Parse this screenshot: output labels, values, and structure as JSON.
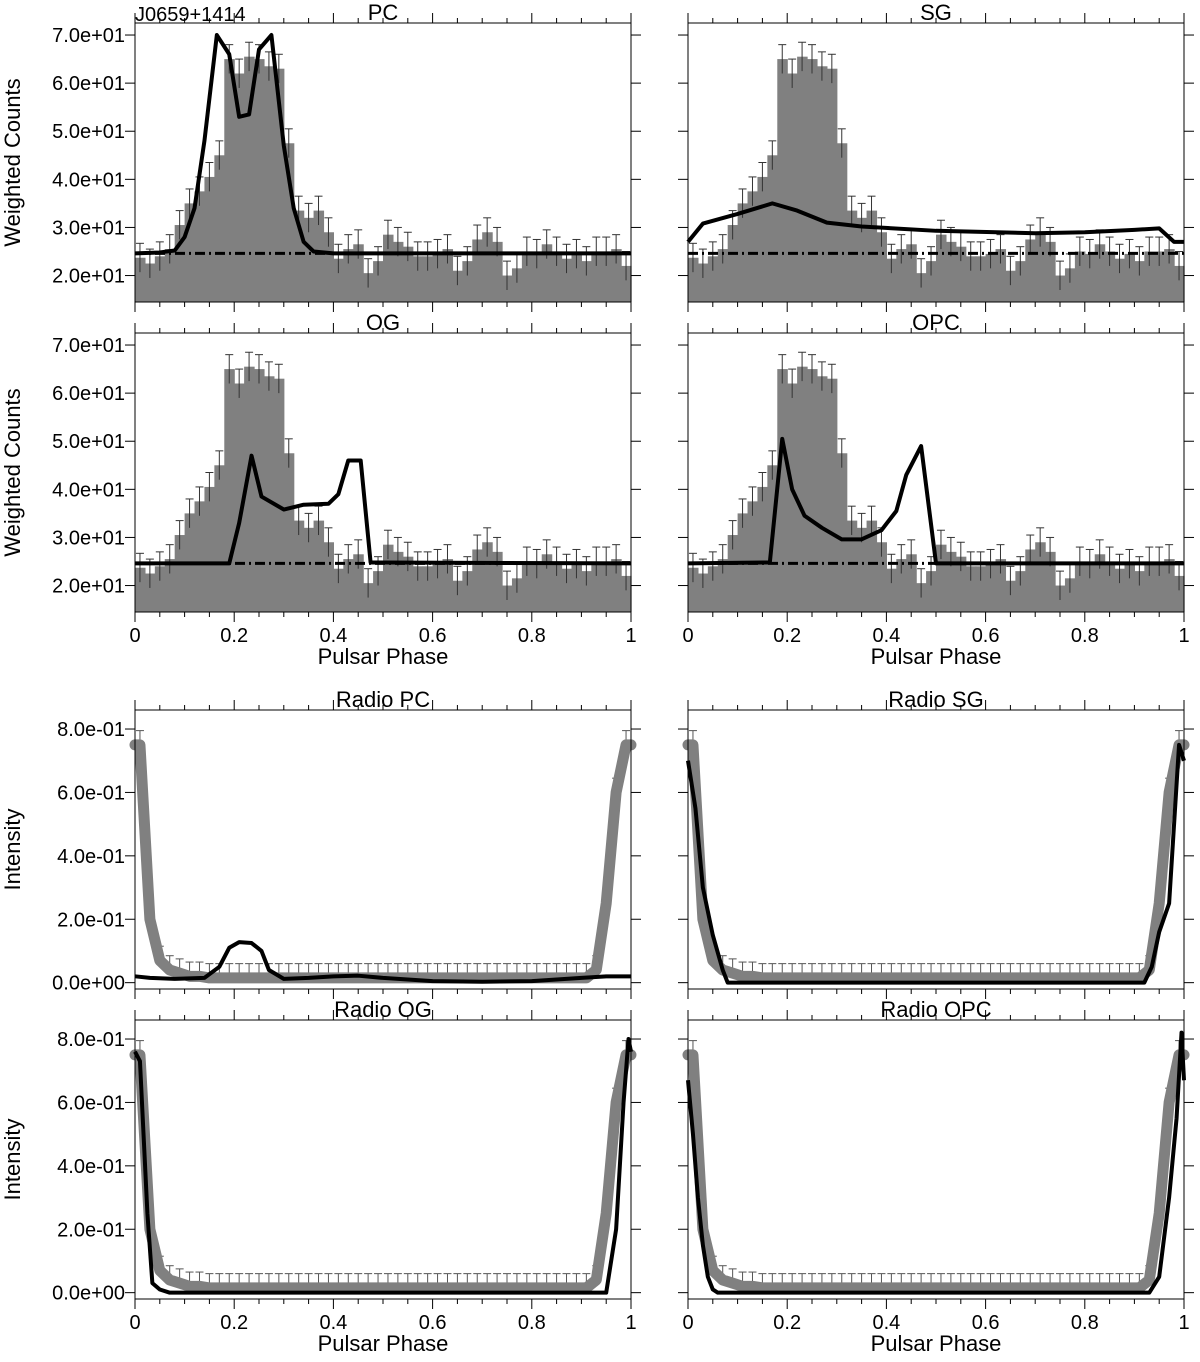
{
  "chart_data": {
    "type": "grid",
    "pulsar_name": "J0659+1414",
    "colors": {
      "observed": "#808080",
      "model": "#000000",
      "background": "#000000",
      "frame": "#000000"
    },
    "panels": [
      {
        "key": "pc",
        "title": "PC",
        "kind": "gamma",
        "ylabel": "Weighted Counts",
        "xlabel": "",
        "xlim": [
          0,
          1
        ],
        "ylim": [
          14.5,
          72.5
        ],
        "yticks": [
          "2.0e+01",
          "3.0e+01",
          "4.0e+01",
          "5.0e+01",
          "6.0e+01",
          "7.0e+01"
        ],
        "xticks": [],
        "background_level": 24.6,
        "model": [
          [
            0,
            24.6
          ],
          [
            0.05,
            24.8
          ],
          [
            0.08,
            25.2
          ],
          [
            0.1,
            28
          ],
          [
            0.12,
            34
          ],
          [
            0.14,
            48
          ],
          [
            0.165,
            70
          ],
          [
            0.19,
            66
          ],
          [
            0.21,
            53
          ],
          [
            0.23,
            53.5
          ],
          [
            0.25,
            67
          ],
          [
            0.275,
            70
          ],
          [
            0.3,
            47
          ],
          [
            0.32,
            34
          ],
          [
            0.34,
            27
          ],
          [
            0.36,
            25
          ],
          [
            0.4,
            24.6
          ],
          [
            1,
            24.6
          ]
        ]
      },
      {
        "key": "sg",
        "title": "SG",
        "kind": "gamma",
        "ylabel": "",
        "xlabel": "",
        "xlim": [
          0,
          1
        ],
        "ylim": [
          14.5,
          72.5
        ],
        "yticks": [],
        "xticks": [],
        "background_level": 24.6,
        "model": [
          [
            0,
            27
          ],
          [
            0.03,
            30.8
          ],
          [
            0.1,
            32.8
          ],
          [
            0.17,
            35
          ],
          [
            0.22,
            33.5
          ],
          [
            0.28,
            31
          ],
          [
            0.35,
            30.2
          ],
          [
            0.5,
            29.3
          ],
          [
            0.7,
            28.8
          ],
          [
            0.8,
            29
          ],
          [
            0.9,
            29.5
          ],
          [
            0.95,
            29.8
          ],
          [
            0.98,
            27
          ],
          [
            1,
            27
          ]
        ]
      },
      {
        "key": "og",
        "title": "OG",
        "kind": "gamma",
        "ylabel": "Weighted Counts",
        "xlabel": "Pulsar Phase",
        "xlim": [
          0,
          1
        ],
        "ylim": [
          14.5,
          72.5
        ],
        "yticks": [
          "2.0e+01",
          "3.0e+01",
          "4.0e+01",
          "5.0e+01",
          "6.0e+01",
          "7.0e+01"
        ],
        "xticks": [
          "0",
          "0.2",
          "0.4",
          "0.6",
          "0.8",
          "1"
        ],
        "background_level": 24.6,
        "model": [
          [
            0,
            24.6
          ],
          [
            0.19,
            24.6
          ],
          [
            0.21,
            33
          ],
          [
            0.235,
            47
          ],
          [
            0.255,
            38.5
          ],
          [
            0.3,
            35.8
          ],
          [
            0.34,
            36.8
          ],
          [
            0.39,
            37
          ],
          [
            0.41,
            39
          ],
          [
            0.43,
            46
          ],
          [
            0.455,
            46
          ],
          [
            0.475,
            24.8
          ],
          [
            1,
            24.6
          ]
        ]
      },
      {
        "key": "opc",
        "title": "OPC",
        "kind": "gamma",
        "ylabel": "",
        "xlabel": "Pulsar Phase",
        "xlim": [
          0,
          1
        ],
        "ylim": [
          14.5,
          72.5
        ],
        "yticks": [],
        "xticks": [
          "0",
          "0.2",
          "0.4",
          "0.6",
          "0.8",
          "1"
        ],
        "background_level": 24.6,
        "model": [
          [
            0,
            24.6
          ],
          [
            0.165,
            24.8
          ],
          [
            0.19,
            50.5
          ],
          [
            0.21,
            40
          ],
          [
            0.235,
            34.5
          ],
          [
            0.27,
            32
          ],
          [
            0.31,
            29.6
          ],
          [
            0.35,
            29.6
          ],
          [
            0.39,
            31.5
          ],
          [
            0.42,
            35.5
          ],
          [
            0.44,
            43
          ],
          [
            0.47,
            49
          ],
          [
            0.5,
            24.6
          ],
          [
            1,
            24.6
          ]
        ]
      },
      {
        "key": "radio-pc",
        "title": "Radio PC",
        "kind": "radio",
        "ylabel": "Intensity",
        "xlabel": "",
        "xlim": [
          0,
          1
        ],
        "ylim": [
          -0.02,
          0.86
        ],
        "yticks": [
          "0.0e+00",
          "2.0e-01",
          "4.0e-01",
          "6.0e-01",
          "8.0e-01"
        ],
        "xticks": [],
        "model": [
          [
            0,
            0.02
          ],
          [
            0.03,
            0.015
          ],
          [
            0.08,
            0.012
          ],
          [
            0.14,
            0.015
          ],
          [
            0.17,
            0.05
          ],
          [
            0.19,
            0.11
          ],
          [
            0.21,
            0.128
          ],
          [
            0.235,
            0.125
          ],
          [
            0.255,
            0.1
          ],
          [
            0.27,
            0.04
          ],
          [
            0.3,
            0.012
          ],
          [
            0.35,
            0.015
          ],
          [
            0.4,
            0.02
          ],
          [
            0.45,
            0.022
          ],
          [
            0.5,
            0.015
          ],
          [
            0.6,
            0.005
          ],
          [
            0.7,
            0.003
          ],
          [
            0.8,
            0.005
          ],
          [
            0.9,
            0.015
          ],
          [
            0.95,
            0.02
          ],
          [
            1,
            0.02
          ]
        ]
      },
      {
        "key": "radio-sg",
        "title": "Radio SG",
        "kind": "radio",
        "ylabel": "",
        "xlabel": "",
        "xlim": [
          0,
          1
        ],
        "ylim": [
          -0.02,
          0.86
        ],
        "yticks": [],
        "xticks": [],
        "model": [
          [
            0,
            0.7
          ],
          [
            0.015,
            0.55
          ],
          [
            0.03,
            0.3
          ],
          [
            0.05,
            0.15
          ],
          [
            0.07,
            0.04
          ],
          [
            0.08,
            0
          ],
          [
            0.92,
            0
          ],
          [
            0.935,
            0.05
          ],
          [
            0.95,
            0.16
          ],
          [
            0.97,
            0.25
          ],
          [
            0.99,
            0.75
          ],
          [
            1,
            0.7
          ]
        ]
      },
      {
        "key": "radio-og",
        "title": "Radio OG",
        "kind": "radio",
        "ylabel": "Intensity",
        "xlabel": "Pulsar Phase",
        "xlim": [
          0,
          1
        ],
        "ylim": [
          -0.02,
          0.86
        ],
        "yticks": [
          "0.0e+00",
          "2.0e-01",
          "4.0e-01",
          "6.0e-01",
          "8.0e-01"
        ],
        "xticks": [
          "0",
          "0.2",
          "0.4",
          "0.6",
          "0.8",
          "1"
        ],
        "model": [
          [
            0,
            0.76
          ],
          [
            0.01,
            0.73
          ],
          [
            0.025,
            0.25
          ],
          [
            0.035,
            0.03
          ],
          [
            0.05,
            0.01
          ],
          [
            0.07,
            0
          ],
          [
            0.95,
            0
          ],
          [
            0.97,
            0.2
          ],
          [
            0.985,
            0.6
          ],
          [
            0.995,
            0.8
          ],
          [
            1,
            0.76
          ]
        ]
      },
      {
        "key": "radio-opc",
        "title": "Radio OPC",
        "kind": "radio",
        "ylabel": "",
        "xlabel": "Pulsar Phase",
        "xlim": [
          0,
          1
        ],
        "ylim": [
          -0.02,
          0.86
        ],
        "yticks": [],
        "xticks": [
          "0",
          "0.2",
          "0.4",
          "0.6",
          "0.8",
          "1"
        ],
        "model": [
          [
            0,
            0.67
          ],
          [
            0.01,
            0.5
          ],
          [
            0.02,
            0.3
          ],
          [
            0.03,
            0.15
          ],
          [
            0.04,
            0.05
          ],
          [
            0.05,
            0.01
          ],
          [
            0.06,
            0
          ],
          [
            0.93,
            0
          ],
          [
            0.95,
            0.05
          ],
          [
            0.97,
            0.3
          ],
          [
            0.985,
            0.55
          ],
          [
            0.995,
            0.82
          ],
          [
            1,
            0.67
          ]
        ]
      }
    ],
    "gamma_observed": {
      "bin_width": 0.02,
      "values": [
        23.7,
        22.5,
        24.0,
        25.5,
        30.5,
        35.0,
        37.5,
        40.5,
        45.0,
        65.0,
        62.0,
        65.5,
        65.0,
        63.5,
        63.0,
        47.5,
        33.5,
        32.0,
        33.5,
        29.0,
        23.5,
        25.5,
        26.5,
        20.5,
        23.0,
        28.5,
        27.0,
        26.0,
        24.0,
        24.0,
        24.5,
        25.5,
        21.0,
        23.0,
        27.5,
        29.0,
        27.0,
        20.0,
        21.5,
        25.0,
        24.5,
        26.5,
        25.0,
        23.5,
        24.5,
        23.0,
        25.0,
        25.0,
        25.5,
        22.0
      ],
      "error": 3.0
    },
    "radio_observed": {
      "bin_width": 0.02,
      "values": [
        0.75,
        0.2,
        0.07,
        0.04,
        0.03,
        0.02,
        0.02,
        0.015,
        0.015,
        0.015,
        0.015,
        0.015,
        0.015,
        0.015,
        0.015,
        0.015,
        0.015,
        0.015,
        0.015,
        0.015,
        0.015,
        0.015,
        0.015,
        0.015,
        0.015,
        0.015,
        0.015,
        0.015,
        0.015,
        0.015,
        0.015,
        0.015,
        0.015,
        0.015,
        0.015,
        0.015,
        0.015,
        0.015,
        0.015,
        0.015,
        0.015,
        0.015,
        0.015,
        0.015,
        0.015,
        0.015,
        0.04,
        0.25,
        0.6,
        0.75
      ],
      "error": 0.045
    }
  }
}
